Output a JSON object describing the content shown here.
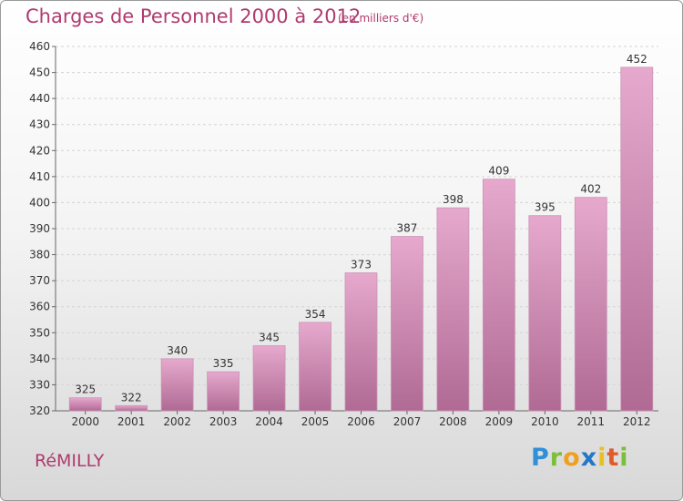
{
  "header": {
    "title": "Charges de Personnel 2000 à 2012",
    "subtitle": "(en milliers d'€)"
  },
  "footer": {
    "place": "RéMILLY",
    "logo_letters": [
      "P",
      "r",
      "o",
      "x",
      "i",
      "t",
      "i"
    ]
  },
  "colors": {
    "bar_top": "#e6a9cd",
    "bar_bottom": "#b06a94",
    "text_accent": "#b03a6e"
  },
  "chart_data": {
    "type": "bar",
    "title": "Charges de Personnel 2000 à 2012",
    "subtitle": "(en milliers d'€)",
    "categories": [
      "2000",
      "2001",
      "2002",
      "2003",
      "2004",
      "2005",
      "2006",
      "2007",
      "2008",
      "2009",
      "2010",
      "2011",
      "2012"
    ],
    "values": [
      325,
      322,
      340,
      335,
      345,
      354,
      373,
      387,
      398,
      409,
      395,
      402,
      452
    ],
    "ylim": [
      320,
      460
    ],
    "yticks": [
      320,
      330,
      340,
      350,
      360,
      370,
      380,
      390,
      400,
      410,
      420,
      430,
      440,
      450,
      460
    ],
    "grid": true,
    "data_labels": true
  }
}
